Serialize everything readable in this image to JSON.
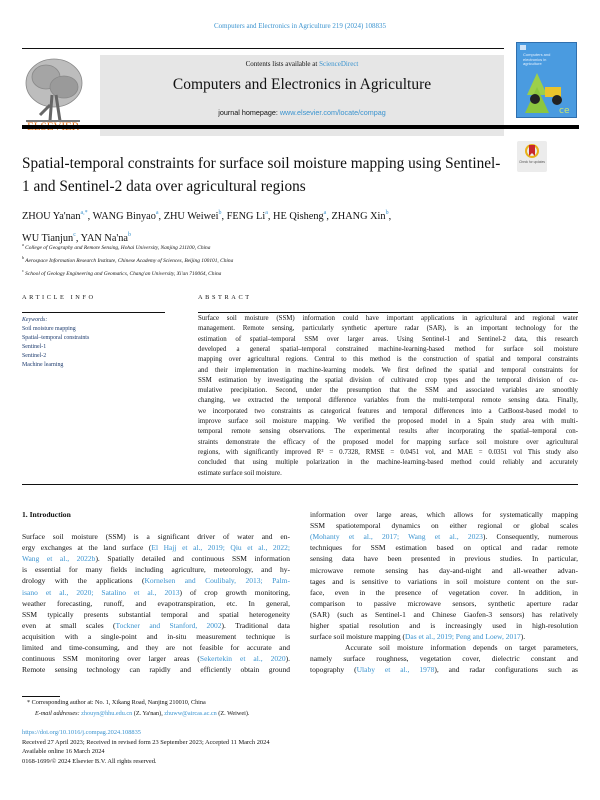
{
  "running_header": "Computers and Electronics in Agriculture 219 (2024) 108835",
  "publisher_logo": "ELSEVIER",
  "masthead": {
    "contents_prefix": "Contents lists available at ",
    "contents_link": "ScienceDirect",
    "journal_title": "Computers and Electronics in Agriculture",
    "homepage_prefix": "journal homepage: ",
    "homepage_link": "www.elsevier.com/locate/compag",
    "cover_title": "Computers and electronics in agriculture",
    "check_updates": "Check for updates"
  },
  "colors": {
    "link": "#3a93cf",
    "elsevier_orange": "#e2731e",
    "keywords": "#1d3b6e",
    "masthead_bg": "#e6e6e6"
  },
  "title": "Spatial-temporal constraints for surface soil moisture mapping using Sentinel-1 and Sentinel-2 data over agricultural regions",
  "authors": [
    {
      "name": "ZHOU Ya'nan",
      "aff": "a,*"
    },
    {
      "name": "WANG Binyao",
      "aff": "a"
    },
    {
      "name": "ZHU Weiwei",
      "aff": "b"
    },
    {
      "name": "FENG Li",
      "aff": "a"
    },
    {
      "name": "HE Qisheng",
      "aff": "a"
    },
    {
      "name": "ZHANG Xin",
      "aff": "b"
    },
    {
      "name": "WU Tianjun",
      "aff": "c"
    },
    {
      "name": "YAN Na'na",
      "aff": "b"
    }
  ],
  "affiliations": [
    {
      "key": "a",
      "text": "College of Geography and Remote Sensing, Hohai University, Nanjing 211100, China"
    },
    {
      "key": "b",
      "text": "Aerospace Information Research Institute, Chinese Academy of Sciences, Beijing 100101, China"
    },
    {
      "key": "c",
      "text": "School of Geology Engineering and Geomatics, Chang'an University, Xi'an 710064, China"
    }
  ],
  "article_info": {
    "heading": "ARTICLE INFO",
    "keywords_label": "Keywords:",
    "keywords": [
      "Soil moisture mapping",
      "Spatial–temporal constraints",
      "Sentinel-1",
      "Sentinel-2",
      "Machine learning"
    ]
  },
  "abstract": {
    "heading": "ABSTRACT",
    "lines": [
      "Surface soil moisture (SSM) information could have important applications in agricultural and regional water",
      "management. Remote sensing, particularly synthetic aperture radar (SAR), is an important technology for the",
      "estimation of spatial–temporal SSM over larger areas. Using Sentinel-1 and Sentinel-2 data, this research",
      "developed a general spatial–temporal constrained machine-learning-based method for surface soil moisture",
      "mapping over agricultural regions. Central to this method is the construction of spatial and temporal constraints",
      "and their implementation in machine-learning models. We first defined the spatial and temporal constraints for",
      "SSM estimation by investigating the spatial division of cultivated crop types and the temporal division of cu-",
      "mulative precipitation. Second, under the presumption that the SSM and associated variables are smoothly",
      "changing, we extracted the temporal difference variables from the multi-temporal remote sensing data. Finally,",
      "we incorporated two constraints as categorical features and temporal differences into a CatBoost-based model to",
      "improve surface soil moisture mapping. We verified the proposed model in a Spain study area with multi-",
      "temporal remote sensing observations. The experimental results after incorporating the spatial–temporal con-",
      "straints demonstrate the efficacy of the proposed model for mapping surface soil moisture over agricultural",
      "regions, with significantly improved R² = 0.7328, RMSE = 0.0451 vol, and MAE = 0.0351 vol This study also",
      "concluded that using multiple polarization in the machine-learning-based method could reliably and accurately",
      "estimate surface soil moisture."
    ]
  },
  "introduction": {
    "heading": "1.  Introduction",
    "left_lines": [
      [
        {
          "t": "Surface soil moisture (SSM) is a significant driver of water and en-"
        }
      ],
      [
        {
          "t": "ergy exchanges at the land surface ("
        },
        {
          "t": "El Hajj et al., 2019; Qiu et al., 2022;",
          "cite": true
        }
      ],
      [
        {
          "t": "Wang et al., 2022b",
          "cite": true
        },
        {
          "t": "). Spatially detailed and continuous SSM information"
        }
      ],
      [
        {
          "t": "is essential for many fields including agriculture, meteorology, and hy-"
        }
      ],
      [
        {
          "t": "drology with the applications ("
        },
        {
          "t": "Kornelsen and Coulibaly, 2013; Palm-",
          "cite": true
        }
      ],
      [
        {
          "t": "isano et al., 2020; Satalino et al., 2013",
          "cite": true
        },
        {
          "t": ") of crop growth monitoring,"
        }
      ],
      [
        {
          "t": "weather forecasting, runoff, and evapotranspiration, etc. In general,"
        }
      ],
      [
        {
          "t": "SSM typically presents substantial temporal and spatial heterogeneity"
        }
      ],
      [
        {
          "t": "even at small scales ("
        },
        {
          "t": "Tockner and Stanford, 2002",
          "cite": true
        },
        {
          "t": "). Traditional data"
        }
      ],
      [
        {
          "t": "acquisition with a single-point and in-situ measurement technique is"
        }
      ],
      [
        {
          "t": "limited and time-consuming, and they are not feasible for accurate and"
        }
      ],
      [
        {
          "t": "continuous SSM monitoring over larger areas ("
        },
        {
          "t": "Sekertekin et al., 2020",
          "cite": true
        },
        {
          "t": ")."
        }
      ],
      [
        {
          "t": "Remote sensing technology can rapidly and efficiently obtain ground"
        }
      ]
    ],
    "right_lines": [
      [
        {
          "t": "information over large areas, which allows for systematically mapping"
        }
      ],
      [
        {
          "t": "SSM spatiotemporal dynamics on either regional or global scales"
        }
      ],
      [
        {
          "t": "(",
          "cite": true
        },
        {
          "t": "Mohanty et al., 2017; Wang et al., 2023",
          "cite": true
        },
        {
          "t": "). Consequently, numerous"
        }
      ],
      [
        {
          "t": "techniques for SSM estimation based on optical and radar remote"
        }
      ],
      [
        {
          "t": "sensing data have been presented in previous studies. In particular,"
        }
      ],
      [
        {
          "t": "microwave remote sensing has day-and-night and all-weather advan-"
        }
      ],
      [
        {
          "t": "tages and is sensitive to variations in soil moisture content on the sur-"
        }
      ],
      [
        {
          "t": "face, even in the presence of vegetation cover. In addition, in"
        }
      ],
      [
        {
          "t": "comparison to passive microwave sensors, synthetic aperture radar"
        }
      ],
      [
        {
          "t": "(SAR) (such as Sentinel-1 and Chinese Gaofen-3 sensors) has relatively"
        }
      ],
      [
        {
          "t": "higher spatial resolution and is increasingly used in high-resolution"
        }
      ],
      [
        {
          "t": "surface soil moisture mapping ("
        },
        {
          "t": "Das et al., 2019; Peng and Loew, 2017",
          "cite": true
        },
        {
          "t": ")."
        }
      ],
      [
        {
          "t": "     Accurate soil moisture information depends on target parameters,"
        }
      ],
      [
        {
          "t": "namely surface roughness, vegetation cover, dielectric constant and"
        }
      ],
      [
        {
          "t": "topography ("
        },
        {
          "t": "Ulaby et al., 1978",
          "cite": true
        },
        {
          "t": "), and radar configurations such as"
        }
      ]
    ]
  },
  "footnote": {
    "corresponding": "* Corresponding author at: No. 1, Xikang Road, Nanjing 210010, China",
    "email_label": "E-mail addresses: ",
    "email1": "zhouyn@hhu.edu.cn",
    "email1_name": " (Z. Ya'nan), ",
    "email2": "zhuww@aircas.ac.cn",
    "email2_name": " (Z. Weiwei)."
  },
  "meta": {
    "doi": "https://doi.org/10.1016/j.compag.2024.108835",
    "received": "Received 27 April 2023; Received in revised form 23 September 2023; Accepted 11 March 2024",
    "available": "Available online 16 March 2024",
    "copyright": "0168-1699/© 2024 Elsevier B.V. All rights reserved."
  }
}
